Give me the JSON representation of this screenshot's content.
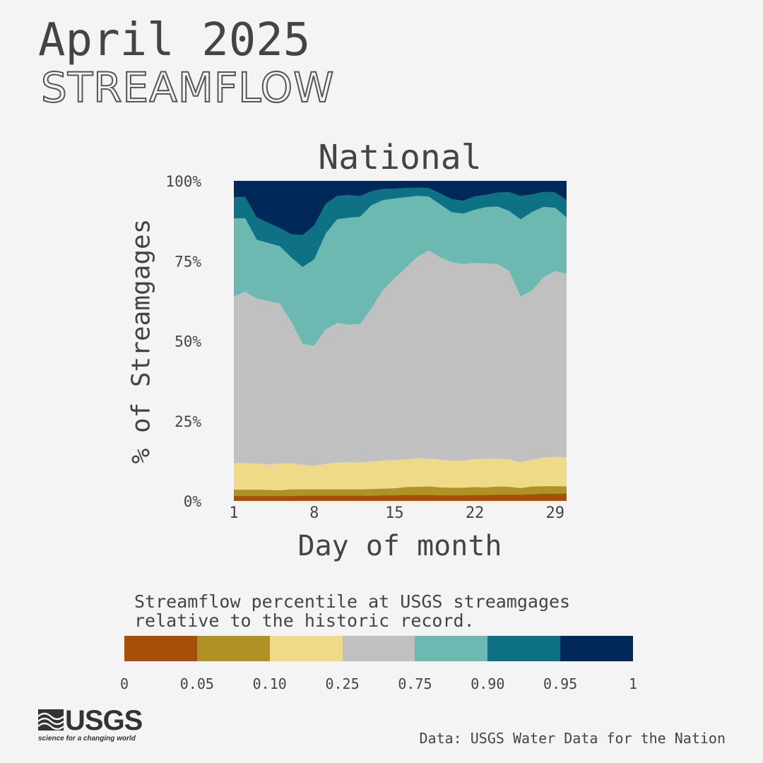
{
  "header": {
    "title": "April 2025",
    "subtitle": "STREAMFLOW"
  },
  "legend": {
    "caption_line1": "Streamflow percentile at USGS streamgages",
    "caption_line2": "relative to the historic record.",
    "colors": [
      "#a84e0b",
      "#b09125",
      "#efdb87",
      "#c0c0c0",
      "#6db9b1",
      "#0e7284",
      "#00295a"
    ],
    "ticks": [
      "0",
      "0.05",
      "0.10",
      "0.25",
      "0.75",
      "0.90",
      "0.95",
      "1"
    ]
  },
  "logo": {
    "wordmark": "USGS",
    "tagline": "science for a changing world",
    "icon": "usgs-wave-icon"
  },
  "source": "Data: USGS Water Data for the Nation",
  "chart_data": {
    "type": "area",
    "stacked": true,
    "title": "National",
    "xlabel": "Day of month",
    "ylabel": "% of Streamgages",
    "x": [
      1,
      2,
      3,
      4,
      5,
      6,
      7,
      8,
      9,
      10,
      11,
      12,
      13,
      14,
      15,
      16,
      17,
      18,
      19,
      20,
      21,
      22,
      23,
      24,
      25,
      26,
      27,
      28,
      29,
      30
    ],
    "xticks": [
      1,
      8,
      15,
      22,
      29
    ],
    "yticks": [
      0,
      25,
      50,
      75,
      100
    ],
    "ytick_labels": [
      "0%",
      "25%",
      "50%",
      "75%",
      "100%"
    ],
    "ylim": [
      0,
      100
    ],
    "boundaries": [
      [
        1.5,
        1.5,
        1.5,
        1.5,
        1.5,
        1.5,
        1.6,
        1.6,
        1.6,
        1.6,
        1.6,
        1.6,
        1.6,
        1.7,
        1.7,
        1.8,
        1.8,
        1.8,
        1.7,
        1.7,
        1.7,
        1.8,
        1.8,
        1.9,
        1.9,
        1.9,
        2.0,
        2.2,
        2.2,
        2.2
      ],
      [
        3.5,
        3.5,
        3.5,
        3.4,
        3.3,
        3.6,
        3.6,
        3.6,
        3.6,
        3.6,
        3.6,
        3.6,
        3.7,
        3.8,
        3.9,
        4.3,
        4.4,
        4.5,
        4.2,
        4.1,
        4.1,
        4.3,
        4.2,
        4.5,
        4.4,
        4.0,
        4.5,
        4.6,
        4.6,
        4.5
      ],
      [
        11.8,
        11.8,
        11.7,
        11.4,
        11.7,
        11.8,
        11.3,
        11.0,
        11.6,
        12.0,
        12.1,
        12.0,
        12.3,
        12.6,
        12.8,
        13.0,
        13.4,
        13.2,
        12.9,
        12.6,
        12.6,
        13.1,
        13.2,
        13.3,
        13.0,
        12.1,
        12.9,
        13.5,
        13.8,
        13.6
      ],
      [
        63.9,
        65.4,
        63.2,
        62.4,
        61.7,
        56.1,
        49.1,
        48.5,
        53.6,
        55.6,
        55.1,
        55.3,
        60.2,
        65.9,
        69.6,
        72.9,
        76.3,
        78.3,
        76.1,
        74.6,
        74.0,
        74.4,
        74.2,
        74.0,
        71.8,
        63.9,
        65.8,
        69.9,
        71.8,
        71.0
      ],
      [
        88.3,
        88.3,
        81.6,
        80.6,
        79.6,
        76.1,
        73.1,
        75.5,
        83.5,
        88.0,
        88.5,
        88.8,
        92.4,
        94.0,
        94.5,
        94.9,
        95.3,
        95.1,
        92.6,
        90.2,
        89.8,
        91.0,
        91.8,
        92.0,
        90.6,
        88.0,
        90.3,
        91.9,
        91.6,
        88.6
      ],
      [
        95.0,
        95.0,
        88.6,
        86.9,
        85.3,
        83.4,
        83.1,
        86.1,
        92.9,
        95.3,
        95.6,
        95.3,
        96.8,
        97.5,
        97.6,
        97.8,
        97.9,
        97.8,
        96.1,
        94.3,
        93.8,
        95.2,
        95.7,
        96.4,
        96.5,
        95.3,
        95.8,
        96.6,
        96.4,
        94.0
      ],
      [
        100,
        100,
        100,
        100,
        100,
        100,
        100,
        100,
        100,
        100,
        100,
        100,
        100,
        100,
        100,
        100,
        100,
        100,
        100,
        100,
        100,
        100,
        100,
        100,
        100,
        100,
        100,
        100,
        100,
        100
      ]
    ],
    "series": [
      {
        "name": "0 – 0.05",
        "color": "#a84e0b"
      },
      {
        "name": "0.05 – 0.10",
        "color": "#b09125"
      },
      {
        "name": "0.10 – 0.25",
        "color": "#efdb87"
      },
      {
        "name": "0.25 – 0.75",
        "color": "#c0c0c0"
      },
      {
        "name": "0.75 – 0.90",
        "color": "#6db9b1"
      },
      {
        "name": "0.90 – 0.95",
        "color": "#0e7284"
      },
      {
        "name": "0.95 – 1",
        "color": "#00295a"
      }
    ]
  }
}
